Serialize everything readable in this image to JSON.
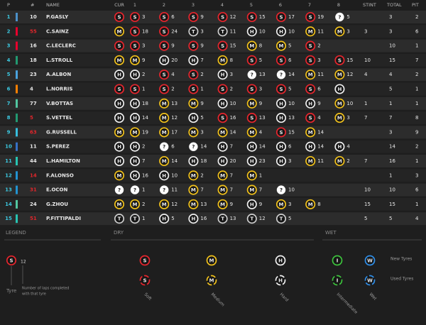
{
  "header": {
    "columns": [
      "P",
      "#",
      "NAME",
      "CUR",
      "1",
      "2",
      "3",
      "4",
      "5",
      "6",
      "7",
      "8",
      "STINT",
      "TOTAL",
      "PIT"
    ]
  },
  "tyre_colors": {
    "S": "#e8252d",
    "M": "#f2c21b",
    "H": "#f0f0f0",
    "T": "#cfcfcf",
    "I": "#3cc23c",
    "W": "#2f8ee8",
    "?": "#ffffff"
  },
  "rows": [
    {
      "pos": 1,
      "number": 10,
      "number_color": "#e8e8e8",
      "team_color": "#4b90c8",
      "name": "P.GASLY",
      "current": "S",
      "stints": [
        {
          "tyre": "S",
          "laps": 3
        },
        {
          "tyre": "S",
          "laps": 6
        },
        {
          "tyre": "S",
          "laps": 9
        },
        {
          "tyre": "S",
          "laps": 12
        },
        {
          "tyre": "S",
          "laps": 15
        },
        {
          "tyre": "S",
          "laps": 17
        },
        {
          "tyre": "S",
          "laps": 19
        },
        {
          "tyre": "?",
          "laps": 5
        }
      ],
      "stint": null,
      "total": 3,
      "pit": 2
    },
    {
      "pos": 2,
      "number": 55,
      "number_color": "#e0262b",
      "team_color": "#e8002d",
      "name": "C.SAINZ",
      "current": "M",
      "stints": [
        {
          "tyre": "S",
          "laps": 18
        },
        {
          "tyre": "S",
          "laps": 24
        },
        {
          "tyre": "T",
          "laps": 3
        },
        {
          "tyre": "T",
          "laps": 11
        },
        {
          "tyre": "H",
          "laps": 10
        },
        {
          "tyre": "H",
          "laps": 10
        },
        {
          "tyre": "M",
          "laps": 11
        },
        {
          "tyre": "M",
          "laps": 3
        }
      ],
      "stint": 3,
      "total": 3,
      "pit": 6
    },
    {
      "pos": 3,
      "number": 16,
      "number_color": "#e8e8e8",
      "team_color": "#e8002d",
      "name": "C.LECLERC",
      "current": "S",
      "stints": [
        {
          "tyre": "S",
          "laps": 3
        },
        {
          "tyre": "S",
          "laps": 9
        },
        {
          "tyre": "S",
          "laps": 9
        },
        {
          "tyre": "S",
          "laps": 15
        },
        {
          "tyre": "M",
          "laps": 8
        },
        {
          "tyre": "M",
          "laps": 5
        },
        {
          "tyre": "S",
          "laps": 2
        }
      ],
      "stint": null,
      "total": 10,
      "pit": 1
    },
    {
      "pos": 4,
      "number": 18,
      "number_color": "#e8e8e8",
      "team_color": "#229971",
      "name": "L.STROLL",
      "current": "M",
      "stints": [
        {
          "tyre": "M",
          "laps": 9
        },
        {
          "tyre": "H",
          "laps": 20
        },
        {
          "tyre": "H",
          "laps": 7
        },
        {
          "tyre": "M",
          "laps": 8
        },
        {
          "tyre": "S",
          "laps": 5
        },
        {
          "tyre": "S",
          "laps": 6
        },
        {
          "tyre": "S",
          "laps": 3
        },
        {
          "tyre": "S",
          "laps": 15
        }
      ],
      "stint": 10,
      "total": 15,
      "pit": 7
    },
    {
      "pos": 5,
      "number": 23,
      "number_color": "#e8e8e8",
      "team_color": "#4aa3df",
      "name": "A.ALBON",
      "current": "H",
      "stints": [
        {
          "tyre": "H",
          "laps": 2
        },
        {
          "tyre": "S",
          "laps": 4
        },
        {
          "tyre": "S",
          "laps": 2
        },
        {
          "tyre": "H",
          "laps": 3
        },
        {
          "tyre": "?",
          "laps": 13
        },
        {
          "tyre": "?",
          "laps": 14
        },
        {
          "tyre": "M",
          "laps": 11
        },
        {
          "tyre": "M",
          "laps": 12
        }
      ],
      "stint": 4,
      "total": 4,
      "pit": 2
    },
    {
      "pos": 6,
      "number": 4,
      "number_color": "#e8e8e8",
      "team_color": "#ff8000",
      "name": "L.NORRIS",
      "current": "S",
      "stints": [
        {
          "tyre": "S",
          "laps": 1
        },
        {
          "tyre": "S",
          "laps": 2
        },
        {
          "tyre": "S",
          "laps": 1
        },
        {
          "tyre": "S",
          "laps": 2
        },
        {
          "tyre": "S",
          "laps": 3
        },
        {
          "tyre": "S",
          "laps": 5
        },
        {
          "tyre": "S",
          "laps": 6
        },
        {
          "tyre": "H",
          "laps": null
        }
      ],
      "stint": null,
      "total": 5,
      "pit": 1
    },
    {
      "pos": 7,
      "number": 77,
      "number_color": "#e8e8e8",
      "team_color": "#52c7a0",
      "name": "V.BOTTAS",
      "current": "H",
      "stints": [
        {
          "tyre": "H",
          "laps": 18
        },
        {
          "tyre": "M",
          "laps": 13
        },
        {
          "tyre": "M",
          "laps": 9
        },
        {
          "tyre": "H",
          "laps": 10
        },
        {
          "tyre": "M",
          "laps": 9
        },
        {
          "tyre": "H",
          "laps": 10
        },
        {
          "tyre": "H",
          "laps": 9
        },
        {
          "tyre": "M",
          "laps": 10
        }
      ],
      "stint": 1,
      "total": 1,
      "pit": 1
    },
    {
      "pos": 8,
      "number": 5,
      "number_color": "#e0262b",
      "team_color": "#229971",
      "name": "S.VETTEL",
      "current": "H",
      "stints": [
        {
          "tyre": "H",
          "laps": 14
        },
        {
          "tyre": "M",
          "laps": 12
        },
        {
          "tyre": "H",
          "laps": 5
        },
        {
          "tyre": "S",
          "laps": 16
        },
        {
          "tyre": "S",
          "laps": 13
        },
        {
          "tyre": "H",
          "laps": 13
        },
        {
          "tyre": "S",
          "laps": 4
        },
        {
          "tyre": "M",
          "laps": 3
        }
      ],
      "stint": 7,
      "total": 7,
      "pit": 8
    },
    {
      "pos": 9,
      "number": 63,
      "number_color": "#e0262b",
      "team_color": "#37bedd",
      "name": "G.RUSSELL",
      "current": "M",
      "stints": [
        {
          "tyre": "M",
          "laps": 19
        },
        {
          "tyre": "M",
          "laps": 17
        },
        {
          "tyre": "M",
          "laps": 3
        },
        {
          "tyre": "M",
          "laps": 14
        },
        {
          "tyre": "M",
          "laps": 4
        },
        {
          "tyre": "S",
          "laps": 15
        },
        {
          "tyre": "M",
          "laps": 14
        }
      ],
      "stint": null,
      "total": 3,
      "pit": 9
    },
    {
      "pos": 10,
      "number": 11,
      "number_color": "#e8e8e8",
      "team_color": "#3671c6",
      "name": "S.PEREZ",
      "current": "H",
      "stints": [
        {
          "tyre": "H",
          "laps": 2
        },
        {
          "tyre": "?",
          "laps": 6
        },
        {
          "tyre": "?",
          "laps": 14
        },
        {
          "tyre": "H",
          "laps": 7
        },
        {
          "tyre": "H",
          "laps": 14
        },
        {
          "tyre": "H",
          "laps": 6
        },
        {
          "tyre": "H",
          "laps": 14
        },
        {
          "tyre": "H",
          "laps": 4
        }
      ],
      "stint": null,
      "total": 14,
      "pit": 2
    },
    {
      "pos": 11,
      "number": 44,
      "number_color": "#e8e8e8",
      "team_color": "#27c4b2",
      "name": "L.HAMILTON",
      "current": "H",
      "stints": [
        {
          "tyre": "H",
          "laps": 7
        },
        {
          "tyre": "M",
          "laps": 14
        },
        {
          "tyre": "H",
          "laps": 18
        },
        {
          "tyre": "H",
          "laps": 20
        },
        {
          "tyre": "H",
          "laps": 23
        },
        {
          "tyre": "H",
          "laps": 3
        },
        {
          "tyre": "M",
          "laps": 11
        },
        {
          "tyre": "M",
          "laps": 2
        }
      ],
      "stint": 7,
      "total": 16,
      "pit": 1
    },
    {
      "pos": 12,
      "number": 14,
      "number_color": "#e0262b",
      "team_color": "#2293d1",
      "name": "F.ALONSO",
      "current": "M",
      "stints": [
        {
          "tyre": "H",
          "laps": 16
        },
        {
          "tyre": "H",
          "laps": 10
        },
        {
          "tyre": "M",
          "laps": 2
        },
        {
          "tyre": "M",
          "laps": 7
        },
        {
          "tyre": "M",
          "laps": 1
        }
      ],
      "stint": null,
      "total": 1,
      "pit": 3
    },
    {
      "pos": 13,
      "number": 31,
      "number_color": "#e0262b",
      "team_color": "#2293d1",
      "name": "E.OCON",
      "current": "?",
      "stints": [
        {
          "tyre": "?",
          "laps": 1
        },
        {
          "tyre": "?",
          "laps": 11
        },
        {
          "tyre": "M",
          "laps": 7
        },
        {
          "tyre": "M",
          "laps": 7
        },
        {
          "tyre": "M",
          "laps": 7
        },
        {
          "tyre": "?",
          "laps": 10
        }
      ],
      "stint": 10,
      "total": 10,
      "pit": 6
    },
    {
      "pos": 14,
      "number": 24,
      "number_color": "#e8e8e8",
      "team_color": "#52c7a0",
      "name": "G.ZHOU",
      "current": "M",
      "stints": [
        {
          "tyre": "M",
          "laps": 2
        },
        {
          "tyre": "M",
          "laps": 12
        },
        {
          "tyre": "M",
          "laps": 13
        },
        {
          "tyre": "M",
          "laps": 9
        },
        {
          "tyre": "H",
          "laps": 9
        },
        {
          "tyre": "M",
          "laps": 3
        },
        {
          "tyre": "M",
          "laps": 8
        }
      ],
      "stint": 15,
      "total": 15,
      "pit": 1
    },
    {
      "pos": 15,
      "number": 51,
      "number_color": "#e0262b",
      "team_color": "#27c4b2",
      "name": "P.FITTIPALDI",
      "current": "T",
      "stints": [
        {
          "tyre": "T",
          "laps": 1
        },
        {
          "tyre": "H",
          "laps": 5
        },
        {
          "tyre": "H",
          "laps": 16
        },
        {
          "tyre": "T",
          "laps": 13
        },
        {
          "tyre": "T",
          "laps": 12
        },
        {
          "tyre": "T",
          "laps": 5
        }
      ],
      "stint": 5,
      "total": 5,
      "pit": 4
    }
  ],
  "legend": {
    "title": "LEGEND",
    "dry_title": "DRY",
    "wet_title": "WET",
    "sample": {
      "tyre": "S",
      "laps": 12,
      "tyre_label": "Tyre",
      "laps_label": [
        "Number of laps completed",
        "with that tyre"
      ]
    },
    "dry": [
      {
        "tyre": "S",
        "label": "Soft"
      },
      {
        "tyre": "M",
        "label": "Medium"
      },
      {
        "tyre": "H",
        "label": "Hard"
      }
    ],
    "wet": [
      {
        "tyre": "I",
        "label": "Intermediate"
      },
      {
        "tyre": "W",
        "label": "Wet"
      }
    ],
    "new_label": "New Tyres",
    "used_label": "Used Tyres"
  }
}
